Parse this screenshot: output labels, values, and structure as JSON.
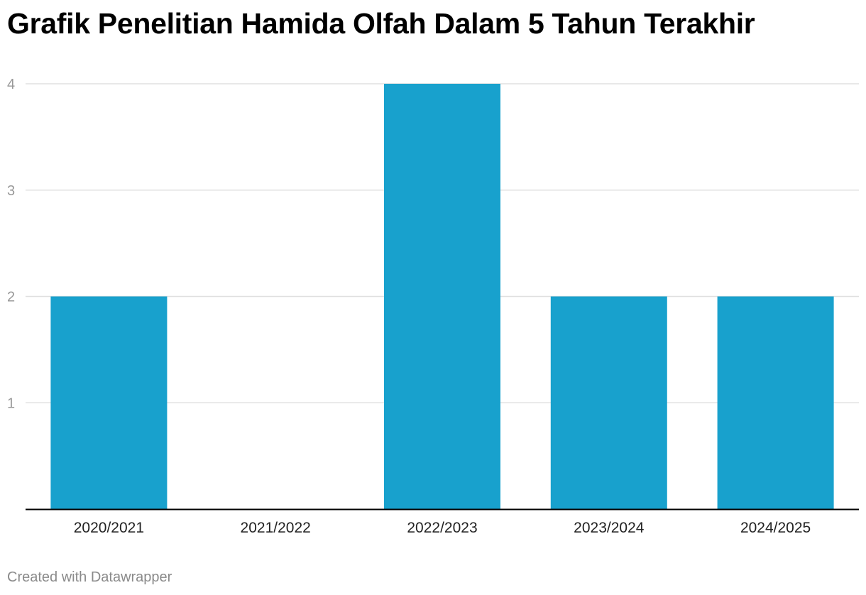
{
  "chart_data": {
    "type": "bar",
    "title": "Grafik Penelitian Hamida Olfah Dalam 5 Tahun Terakhir",
    "categories": [
      "2020/2021",
      "2021/2022",
      "2022/2023",
      "2023/2024",
      "2024/2025"
    ],
    "values": [
      2,
      0,
      4,
      2,
      2
    ],
    "xlabel": "",
    "ylabel": "",
    "ylim": [
      0,
      4
    ],
    "yticks": [
      1,
      2,
      3,
      4
    ],
    "grid": true,
    "legend": "none",
    "colors": {
      "bar": "#18a1cd",
      "grid": "#e0e0e0",
      "baseline": "#000000",
      "tick_label": "#999999",
      "category_label": "#222222"
    }
  },
  "footer": {
    "credit": "Created with Datawrapper"
  }
}
